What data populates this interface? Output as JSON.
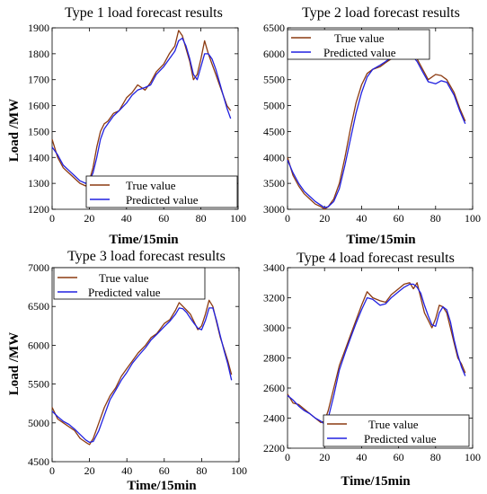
{
  "colors": {
    "true": "#8b3a10",
    "pred": "#2020e0"
  },
  "chart_data": [
    {
      "type": "line",
      "title": "Type 1 load forecast  results",
      "xlabel": "Time/15min",
      "ylabel": "Load /MW",
      "xlim": [
        0,
        100
      ],
      "ylim": [
        1200,
        1900
      ],
      "xticks": [
        0,
        20,
        40,
        60,
        80,
        100
      ],
      "yticks": [
        1200,
        1300,
        1400,
        1500,
        1600,
        1700,
        1800,
        1900
      ],
      "legend_loc": "lower-center",
      "series": [
        {
          "name": "True value",
          "key": "true",
          "x": [
            0,
            3,
            6,
            9,
            12,
            15,
            18,
            20,
            22,
            24,
            26,
            28,
            30,
            33,
            36,
            40,
            43,
            46,
            50,
            53,
            56,
            60,
            63,
            66,
            68,
            70,
            72,
            74,
            76,
            78,
            80,
            82,
            84,
            86,
            88,
            90,
            92,
            94,
            96
          ],
          "y": [
            1470,
            1400,
            1360,
            1340,
            1320,
            1300,
            1290,
            1310,
            1360,
            1440,
            1500,
            1530,
            1540,
            1570,
            1580,
            1630,
            1650,
            1680,
            1660,
            1690,
            1730,
            1760,
            1800,
            1830,
            1890,
            1870,
            1820,
            1770,
            1700,
            1720,
            1780,
            1850,
            1800,
            1760,
            1720,
            1680,
            1640,
            1600,
            1580
          ]
        },
        {
          "name": "Predicted value",
          "key": "pred",
          "x": [
            0,
            3,
            6,
            9,
            12,
            15,
            18,
            20,
            22,
            24,
            26,
            28,
            30,
            33,
            36,
            40,
            43,
            46,
            50,
            53,
            56,
            60,
            63,
            66,
            68,
            70,
            72,
            74,
            76,
            78,
            80,
            82,
            84,
            86,
            88,
            90,
            92,
            94,
            96
          ],
          "y": [
            1440,
            1410,
            1370,
            1350,
            1330,
            1310,
            1300,
            1310,
            1340,
            1400,
            1470,
            1510,
            1530,
            1560,
            1580,
            1610,
            1640,
            1660,
            1670,
            1680,
            1720,
            1750,
            1780,
            1810,
            1850,
            1860,
            1830,
            1780,
            1720,
            1700,
            1750,
            1800,
            1800,
            1780,
            1740,
            1690,
            1640,
            1590,
            1550
          ]
        }
      ]
    },
    {
      "type": "line",
      "title": "Type 2 load forecast  results",
      "xlabel": "Time/15min",
      "ylabel": "",
      "xlim": [
        0,
        100
      ],
      "ylim": [
        3000,
        6500
      ],
      "xticks": [
        0,
        20,
        40,
        60,
        80,
        100
      ],
      "yticks": [
        3000,
        3500,
        4000,
        4500,
        5000,
        5500,
        6000,
        6500
      ],
      "legend_loc": "top-center",
      "series": [
        {
          "name": "True value",
          "key": "true",
          "x": [
            0,
            3,
            6,
            9,
            12,
            15,
            18,
            20,
            22,
            25,
            28,
            31,
            34,
            37,
            40,
            43,
            46,
            50,
            53,
            56,
            60,
            63,
            66,
            70,
            73,
            76,
            80,
            83,
            86,
            90,
            93,
            96
          ],
          "y": [
            4000,
            3650,
            3450,
            3300,
            3200,
            3100,
            3050,
            3000,
            3050,
            3200,
            3500,
            4000,
            4550,
            5050,
            5400,
            5620,
            5700,
            5750,
            5830,
            5900,
            5970,
            6100,
            6100,
            5900,
            5700,
            5500,
            5600,
            5580,
            5500,
            5250,
            4950,
            4700
          ]
        },
        {
          "name": "Predicted value",
          "key": "pred",
          "x": [
            0,
            3,
            6,
            9,
            12,
            15,
            18,
            20,
            22,
            25,
            28,
            31,
            34,
            37,
            40,
            43,
            46,
            50,
            53,
            56,
            60,
            63,
            66,
            70,
            73,
            76,
            80,
            83,
            86,
            90,
            93,
            96
          ],
          "y": [
            3950,
            3700,
            3500,
            3350,
            3250,
            3150,
            3080,
            3030,
            3050,
            3150,
            3400,
            3850,
            4350,
            4850,
            5250,
            5550,
            5700,
            5780,
            5850,
            5930,
            6000,
            6050,
            6020,
            5850,
            5650,
            5460,
            5420,
            5480,
            5450,
            5200,
            4900,
            4650
          ]
        }
      ]
    },
    {
      "type": "line",
      "title": "Type 3 load forecast  results",
      "xlabel": "Time/15min",
      "ylabel": "Load /MW",
      "xlim": [
        0,
        100
      ],
      "ylim": [
        4500,
        7000
      ],
      "xticks": [
        0,
        20,
        40,
        60,
        80,
        100
      ],
      "yticks": [
        4500,
        5000,
        5500,
        6000,
        6500,
        7000
      ],
      "legend_loc": "top-left",
      "series": [
        {
          "name": "True value",
          "key": "true",
          "x": [
            0,
            3,
            6,
            9,
            12,
            15,
            18,
            20,
            22,
            25,
            28,
            31,
            34,
            37,
            40,
            43,
            46,
            50,
            53,
            56,
            60,
            63,
            66,
            68,
            70,
            72,
            74,
            76,
            78,
            80,
            82,
            84,
            86,
            88,
            90,
            92,
            94,
            96
          ],
          "y": [
            5200,
            5050,
            5000,
            4950,
            4900,
            4800,
            4750,
            4720,
            4800,
            5000,
            5200,
            5350,
            5450,
            5600,
            5700,
            5800,
            5900,
            6000,
            6100,
            6150,
            6280,
            6330,
            6450,
            6550,
            6500,
            6450,
            6400,
            6300,
            6200,
            6250,
            6400,
            6580,
            6500,
            6300,
            6100,
            5950,
            5800,
            5620
          ]
        },
        {
          "name": "Predicted value",
          "key": "pred",
          "x": [
            0,
            3,
            6,
            9,
            12,
            15,
            18,
            20,
            22,
            25,
            28,
            31,
            34,
            37,
            40,
            43,
            46,
            50,
            53,
            56,
            60,
            63,
            66,
            68,
            70,
            72,
            74,
            76,
            78,
            80,
            82,
            84,
            86,
            88,
            90,
            92,
            94,
            96
          ],
          "y": [
            5150,
            5080,
            5020,
            4980,
            4920,
            4850,
            4780,
            4750,
            4760,
            4900,
            5100,
            5300,
            5420,
            5550,
            5650,
            5770,
            5860,
            5970,
            6070,
            6140,
            6240,
            6310,
            6400,
            6480,
            6470,
            6420,
            6350,
            6280,
            6220,
            6200,
            6320,
            6480,
            6480,
            6320,
            6120,
            5930,
            5760,
            5550
          ]
        }
      ]
    },
    {
      "type": "line",
      "title": "Type 4 load forecast  results",
      "xlabel": "Time/15min",
      "ylabel": "",
      "xlim": [
        0,
        100
      ],
      "ylim": [
        2200,
        3400
      ],
      "xticks": [
        0,
        20,
        40,
        60,
        80,
        100
      ],
      "yticks": [
        2200,
        2400,
        2600,
        2800,
        3000,
        3200,
        3400
      ],
      "legend_loc": "bottom-right",
      "series": [
        {
          "name": "True value",
          "key": "true",
          "x": [
            0,
            3,
            6,
            9,
            12,
            15,
            18,
            20,
            22,
            25,
            28,
            31,
            34,
            37,
            40,
            43,
            46,
            50,
            53,
            56,
            60,
            63,
            66,
            68,
            70,
            72,
            74,
            76,
            78,
            80,
            82,
            84,
            86,
            88,
            90,
            92,
            94,
            96
          ],
          "y": [
            2560,
            2500,
            2490,
            2460,
            2430,
            2400,
            2370,
            2380,
            2450,
            2600,
            2750,
            2850,
            2950,
            3050,
            3150,
            3240,
            3200,
            3180,
            3170,
            3220,
            3260,
            3290,
            3300,
            3260,
            3300,
            3200,
            3100,
            3050,
            3000,
            3060,
            3150,
            3140,
            3100,
            3000,
            2900,
            2800,
            2760,
            2700
          ]
        },
        {
          "name": "Predicted value",
          "key": "pred",
          "x": [
            0,
            3,
            6,
            9,
            12,
            15,
            18,
            20,
            22,
            25,
            28,
            31,
            34,
            37,
            40,
            43,
            46,
            50,
            53,
            56,
            60,
            63,
            66,
            68,
            70,
            72,
            74,
            76,
            78,
            80,
            82,
            84,
            86,
            88,
            90,
            92,
            94,
            96
          ],
          "y": [
            2550,
            2520,
            2480,
            2450,
            2430,
            2400,
            2380,
            2360,
            2400,
            2550,
            2720,
            2830,
            2930,
            3030,
            3120,
            3200,
            3190,
            3150,
            3160,
            3200,
            3240,
            3270,
            3290,
            3290,
            3270,
            3230,
            3150,
            3080,
            3020,
            3010,
            3100,
            3140,
            3120,
            3040,
            2920,
            2820,
            2740,
            2680
          ]
        }
      ]
    }
  ]
}
